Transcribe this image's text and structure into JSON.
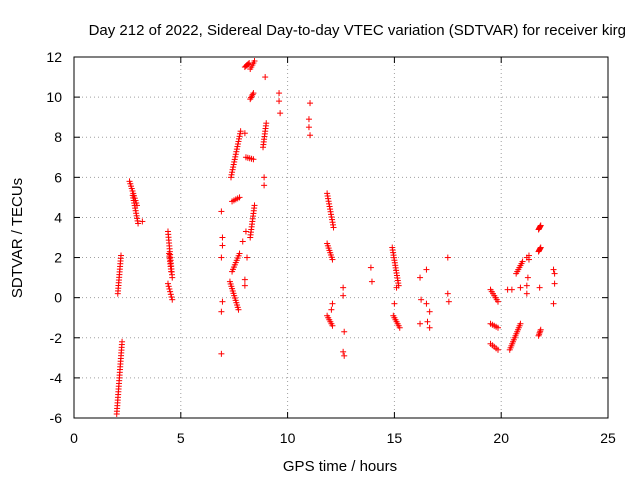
{
  "chart_data": {
    "type": "scatter",
    "title": "Day 212 of 2022, Sidereal Day-to-day VTEC variation (SDTVAR) for receiver kirg",
    "xlabel": "GPS time / hours",
    "ylabel": "SDTVAR / TECUs",
    "xlim": [
      0,
      25
    ],
    "ylim": [
      -6,
      12
    ],
    "xticks": [
      0,
      5,
      10,
      15,
      20,
      25
    ],
    "yticks": [
      -6,
      -4,
      -2,
      0,
      2,
      4,
      6,
      8,
      10,
      12
    ],
    "xtick_labels": [
      "0",
      "5",
      "10",
      "15",
      "20",
      "25"
    ],
    "ytick_labels": [
      "-6",
      "-4",
      "-2",
      "0",
      "2",
      "4",
      "6",
      "8",
      "10",
      "12"
    ],
    "grid": true,
    "marker": "+",
    "color": "#ff0000",
    "segments": [
      {
        "x0": 2.05,
        "x1": 2.2,
        "y0": 0.2,
        "y1": 2.1
      },
      {
        "x0": 2.0,
        "x1": 2.25,
        "y0": -5.8,
        "y1": -2.2
      },
      {
        "x0": 2.6,
        "x1": 2.95,
        "y0": 5.8,
        "y1": 4.6
      },
      {
        "x0": 2.75,
        "x1": 3.0,
        "y0": 5.1,
        "y1": 3.7
      },
      {
        "x0": 4.4,
        "x1": 4.6,
        "y0": 3.3,
        "y1": 1.0
      },
      {
        "x0": 4.45,
        "x1": 4.55,
        "y0": 2.2,
        "y1": 1.3
      },
      {
        "x0": 4.4,
        "x1": 4.6,
        "y0": 0.7,
        "y1": -0.1
      },
      {
        "x0": 7.35,
        "x1": 7.8,
        "y0": 6.0,
        "y1": 8.3
      },
      {
        "x0": 7.4,
        "x1": 7.75,
        "y0": 4.8,
        "y1": 5.0
      },
      {
        "x0": 7.4,
        "x1": 7.75,
        "y0": 1.3,
        "y1": 2.2
      },
      {
        "x0": 7.3,
        "x1": 7.7,
        "y0": 0.8,
        "y1": -0.6
      },
      {
        "x0": 8.0,
        "x1": 8.2,
        "y0": 11.5,
        "y1": 11.7
      },
      {
        "x0": 8.25,
        "x1": 8.45,
        "y0": 11.4,
        "y1": 11.8
      },
      {
        "x0": 8.05,
        "x1": 8.4,
        "y0": 7.0,
        "y1": 6.9
      },
      {
        "x0": 8.25,
        "x1": 8.4,
        "y0": 9.9,
        "y1": 10.2
      },
      {
        "x0": 8.25,
        "x1": 8.45,
        "y0": 3.0,
        "y1": 4.6
      },
      {
        "x0": 8.85,
        "x1": 9.0,
        "y0": 7.5,
        "y1": 8.7
      },
      {
        "x0": 11.85,
        "x1": 12.15,
        "y0": 5.2,
        "y1": 3.5
      },
      {
        "x0": 11.85,
        "x1": 12.1,
        "y0": 2.7,
        "y1": 1.9
      },
      {
        "x0": 11.85,
        "x1": 12.1,
        "y0": -0.9,
        "y1": -1.4
      },
      {
        "x0": 14.9,
        "x1": 15.2,
        "y0": 2.5,
        "y1": 0.6
      },
      {
        "x0": 14.95,
        "x1": 15.25,
        "y0": -0.9,
        "y1": -1.5
      },
      {
        "x0": 19.5,
        "x1": 19.85,
        "y0": 0.4,
        "y1": -0.2
      },
      {
        "x0": 19.5,
        "x1": 19.85,
        "y0": -1.3,
        "y1": -1.5
      },
      {
        "x0": 19.5,
        "x1": 19.85,
        "y0": -2.3,
        "y1": -2.6
      },
      {
        "x0": 20.4,
        "x1": 20.9,
        "y0": -2.6,
        "y1": -1.3
      },
      {
        "x0": 20.7,
        "x1": 21.0,
        "y0": 1.2,
        "y1": 1.8
      },
      {
        "x0": 21.75,
        "x1": 21.85,
        "y0": 3.4,
        "y1": 3.6
      },
      {
        "x0": 21.75,
        "x1": 21.85,
        "y0": 2.3,
        "y1": 2.5
      },
      {
        "x0": 21.75,
        "x1": 21.85,
        "y0": -1.9,
        "y1": -1.6
      }
    ],
    "points": [
      [
        3.2,
        3.8
      ],
      [
        6.9,
        4.3
      ],
      [
        6.95,
        3.0
      ],
      [
        6.95,
        2.6
      ],
      [
        6.9,
        2.0
      ],
      [
        6.95,
        -0.2
      ],
      [
        6.9,
        -0.7
      ],
      [
        6.9,
        -2.8
      ],
      [
        7.9,
        2.8
      ],
      [
        8.0,
        8.2
      ],
      [
        8.05,
        3.3
      ],
      [
        8.0,
        0.9
      ],
      [
        8.0,
        0.6
      ],
      [
        8.1,
        2.0
      ],
      [
        8.95,
        11.0
      ],
      [
        8.9,
        6.0
      ],
      [
        8.9,
        5.6
      ],
      [
        9.6,
        10.2
      ],
      [
        9.6,
        9.8
      ],
      [
        9.65,
        9.2
      ],
      [
        11.05,
        9.7
      ],
      [
        11.0,
        8.9
      ],
      [
        11.0,
        8.5
      ],
      [
        11.05,
        8.1
      ],
      [
        12.1,
        -0.3
      ],
      [
        12.05,
        -0.6
      ],
      [
        12.6,
        0.5
      ],
      [
        12.6,
        0.1
      ],
      [
        12.65,
        -1.7
      ],
      [
        12.6,
        -2.7
      ],
      [
        12.65,
        -2.9
      ],
      [
        13.9,
        1.5
      ],
      [
        13.95,
        0.8
      ],
      [
        15.0,
        -0.3
      ],
      [
        15.1,
        0.5
      ],
      [
        16.2,
        1.0
      ],
      [
        16.25,
        -0.1
      ],
      [
        16.5,
        -0.3
      ],
      [
        16.5,
        1.4
      ],
      [
        16.55,
        -1.2
      ],
      [
        16.2,
        -1.3
      ],
      [
        16.65,
        -1.5
      ],
      [
        16.65,
        -0.7
      ],
      [
        17.5,
        2.0
      ],
      [
        17.5,
        0.2
      ],
      [
        17.55,
        -0.2
      ],
      [
        20.3,
        0.4
      ],
      [
        20.5,
        0.4
      ],
      [
        20.9,
        0.5
      ],
      [
        21.2,
        0.6
      ],
      [
        21.2,
        0.2
      ],
      [
        21.25,
        1.0
      ],
      [
        21.3,
        1.9
      ],
      [
        21.3,
        2.1
      ],
      [
        21.2,
        2.0
      ],
      [
        21.8,
        0.5
      ],
      [
        22.45,
        1.4
      ],
      [
        22.5,
        1.2
      ],
      [
        22.5,
        0.7
      ],
      [
        22.45,
        -0.3
      ]
    ]
  }
}
